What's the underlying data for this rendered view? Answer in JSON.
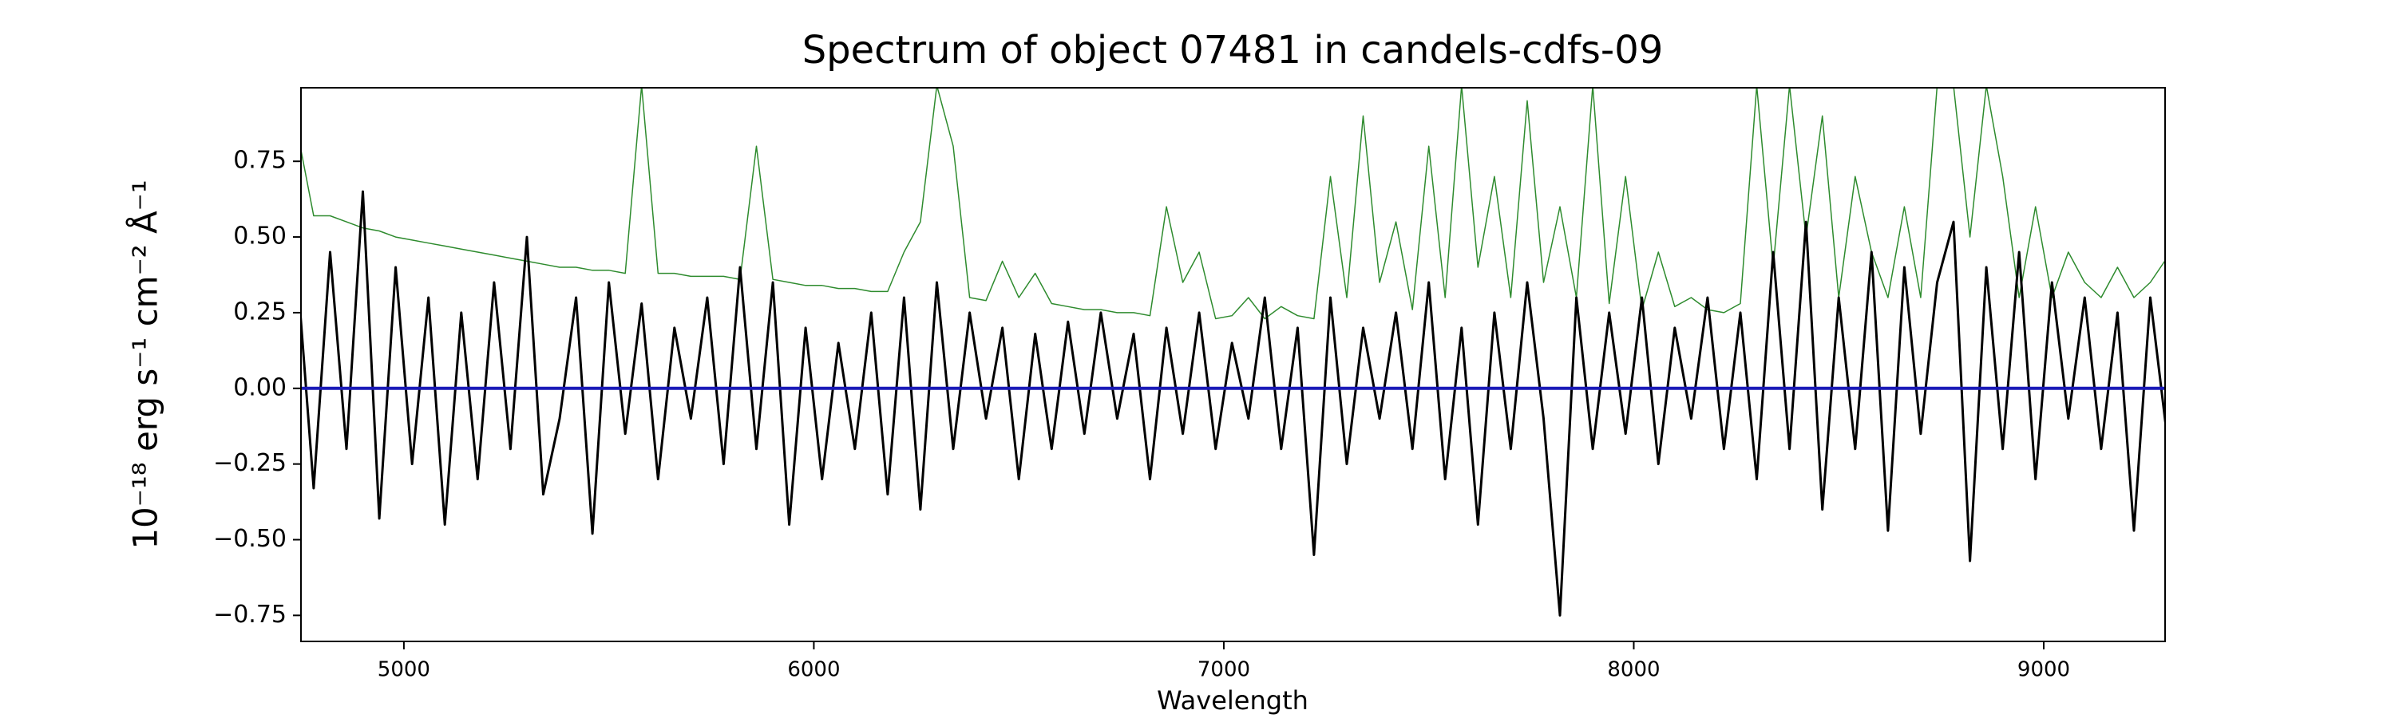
{
  "chart_data": {
    "type": "line",
    "title": "Spectrum of object 07481 in candels-cdfs-09",
    "xlabel": "Wavelength",
    "ylabel": "10⁻¹⁸ erg s⁻¹ cm⁻² Å⁻¹",
    "xlim": [
      4749,
      9296
    ],
    "ylim": [
      -0.836,
      0.993
    ],
    "xticks": [
      5000,
      6000,
      7000,
      8000,
      9000
    ],
    "yticks": [
      {
        "value": -0.75,
        "label": "−0.75"
      },
      {
        "value": -0.5,
        "label": "−0.50"
      },
      {
        "value": -0.25,
        "label": "−0.25"
      },
      {
        "value": 0,
        "label": "0.00"
      },
      0.25,
      {
        "value": 0.5,
        "label": "0.50"
      },
      0.75
    ],
    "x": [
      4740,
      4780,
      4820,
      4860,
      4900,
      4940,
      4980,
      5020,
      5060,
      5100,
      5140,
      5180,
      5220,
      5260,
      5300,
      5340,
      5380,
      5420,
      5460,
      5500,
      5540,
      5580,
      5620,
      5660,
      5700,
      5740,
      5780,
      5820,
      5860,
      5900,
      5940,
      5980,
      6020,
      6060,
      6100,
      6140,
      6180,
      6220,
      6260,
      6300,
      6340,
      6380,
      6420,
      6460,
      6500,
      6540,
      6580,
      6620,
      6660,
      6700,
      6740,
      6780,
      6820,
      6860,
      6900,
      6940,
      6980,
      7020,
      7060,
      7100,
      7140,
      7180,
      7220,
      7260,
      7300,
      7340,
      7380,
      7420,
      7460,
      7500,
      7540,
      7580,
      7620,
      7660,
      7700,
      7740,
      7780,
      7820,
      7860,
      7900,
      7940,
      7980,
      8020,
      8060,
      8100,
      8140,
      8180,
      8220,
      8260,
      8300,
      8340,
      8380,
      8420,
      8460,
      8500,
      8540,
      8580,
      8620,
      8660,
      8700,
      8740,
      8780,
      8820,
      8860,
      8900,
      8940,
      8980,
      9020,
      9060,
      9100,
      9140,
      9180,
      9220,
      9260,
      9300
    ],
    "series": [
      {
        "color": "#000000",
        "width": 3,
        "values": [
          0.38,
          -0.33,
          0.45,
          -0.2,
          0.65,
          -0.43,
          0.4,
          -0.25,
          0.3,
          -0.45,
          0.25,
          -0.3,
          0.35,
          -0.2,
          0.5,
          -0.35,
          -0.1,
          0.3,
          -0.48,
          0.35,
          -0.15,
          0.28,
          -0.3,
          0.2,
          -0.1,
          0.3,
          -0.25,
          0.4,
          -0.2,
          0.35,
          -0.45,
          0.2,
          -0.3,
          0.15,
          -0.2,
          0.25,
          -0.35,
          0.3,
          -0.4,
          0.35,
          -0.2,
          0.25,
          -0.1,
          0.2,
          -0.3,
          0.18,
          -0.2,
          0.22,
          -0.15,
          0.25,
          -0.1,
          0.18,
          -0.3,
          0.2,
          -0.15,
          0.25,
          -0.2,
          0.15,
          -0.1,
          0.3,
          -0.2,
          0.2,
          -0.55,
          0.3,
          -0.25,
          0.2,
          -0.1,
          0.25,
          -0.2,
          0.35,
          -0.3,
          0.2,
          -0.45,
          0.25,
          -0.2,
          0.35,
          -0.1,
          -0.75,
          0.3,
          -0.2,
          0.25,
          -0.15,
          0.3,
          -0.25,
          0.2,
          -0.1,
          0.3,
          -0.2,
          0.25,
          -0.3,
          0.45,
          -0.2,
          0.55,
          -0.4,
          0.3,
          -0.2,
          0.45,
          -0.47,
          0.4,
          -0.15,
          0.35,
          0.55,
          -0.57,
          0.4,
          -0.2,
          0.45,
          -0.3,
          0.35,
          -0.1,
          0.3,
          -0.2,
          0.25,
          -0.47,
          0.3,
          -0.15
        ]
      },
      {
        "color": "#2e8b2e",
        "width": 1.5,
        "values": [
          0.85,
          0.57,
          0.57,
          0.55,
          0.53,
          0.52,
          0.5,
          0.49,
          0.48,
          0.47,
          0.46,
          0.45,
          0.44,
          0.43,
          0.42,
          0.41,
          0.4,
          0.4,
          0.39,
          0.39,
          0.38,
          1.0,
          0.38,
          0.38,
          0.37,
          0.37,
          0.37,
          0.36,
          0.8,
          0.36,
          0.35,
          0.34,
          0.34,
          0.33,
          0.33,
          0.32,
          0.32,
          0.45,
          0.55,
          1.0,
          0.8,
          0.3,
          0.29,
          0.42,
          0.3,
          0.38,
          0.28,
          0.27,
          0.26,
          0.26,
          0.25,
          0.25,
          0.24,
          0.6,
          0.35,
          0.45,
          0.23,
          0.24,
          0.3,
          0.23,
          0.27,
          0.24,
          0.23,
          0.7,
          0.3,
          0.9,
          0.35,
          0.55,
          0.26,
          0.8,
          0.3,
          1.0,
          0.4,
          0.7,
          0.3,
          0.95,
          0.35,
          0.6,
          0.3,
          1.0,
          0.28,
          0.7,
          0.26,
          0.45,
          0.27,
          0.3,
          0.26,
          0.25,
          0.28,
          1.0,
          0.4,
          1.0,
          0.5,
          0.9,
          0.3,
          0.7,
          0.45,
          0.3,
          0.6,
          0.3,
          1.0,
          1.0,
          0.5,
          1.0,
          0.7,
          0.3,
          0.6,
          0.3,
          0.45,
          0.35,
          0.3,
          0.4,
          0.3,
          0.35,
          0.43
        ]
      },
      {
        "color": "#1a1ab8",
        "width": 4,
        "x": [
          4740,
          9300
        ],
        "values": [
          0,
          0
        ]
      }
    ]
  }
}
